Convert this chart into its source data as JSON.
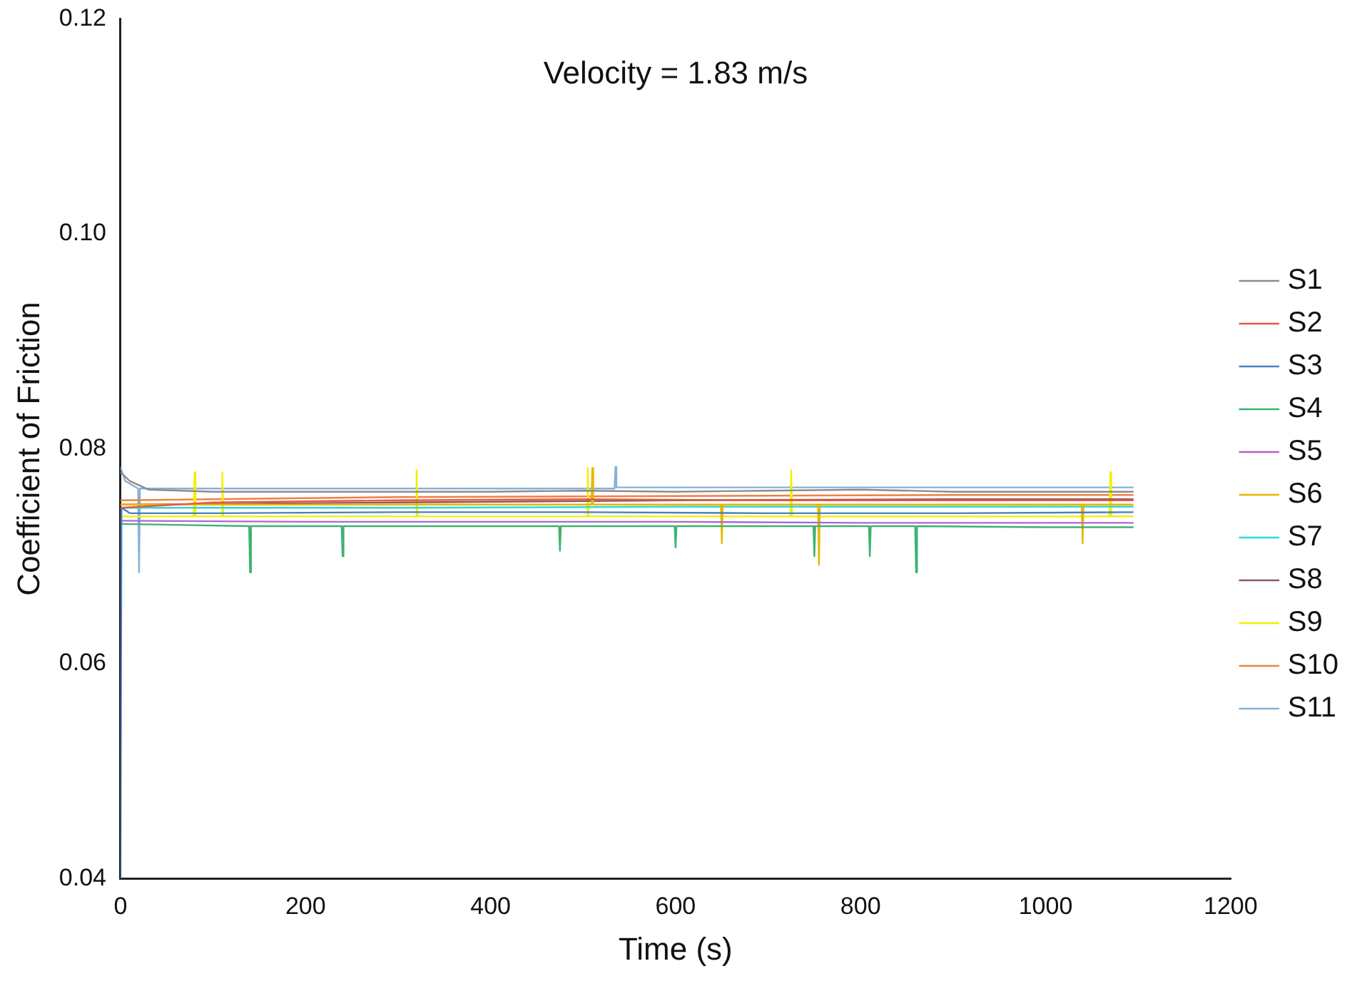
{
  "chart_data": {
    "type": "line",
    "xlabel": "Time (s)",
    "ylabel": "Coefficient of Friction",
    "annotations": [
      "Velocity = 1.83 m/s"
    ],
    "xlim": [
      0,
      1200
    ],
    "xticks": [
      0,
      200,
      400,
      600,
      800,
      1000,
      1200
    ],
    "ylim": [
      0.04,
      0.12
    ],
    "yticks": [
      0.04,
      0.06,
      0.08,
      {
        "value": 0.1,
        "label": "0.10"
      },
      0.12
    ],
    "legend": "right",
    "marker": "none",
    "line_style": "solid",
    "grid": false,
    "series": [
      {
        "name": "S1",
        "color": "#8c8c8c",
        "x": [
          0,
          10,
          30,
          100,
          200,
          300,
          400,
          500,
          600,
          700,
          800,
          900,
          1000,
          1095
        ],
        "values": [
          0.0778,
          0.077,
          0.0762,
          0.076,
          0.076,
          0.076,
          0.076,
          0.0761,
          0.076,
          0.0761,
          0.0762,
          0.076,
          0.076,
          0.076
        ]
      },
      {
        "name": "S2",
        "color": "#e8564f",
        "x": [
          0,
          100,
          300,
          500,
          700,
          900,
          1095
        ],
        "values": [
          0.0745,
          0.075,
          0.0752,
          0.0753,
          0.0752,
          0.0752,
          0.0752
        ]
      },
      {
        "name": "S3",
        "color": "#4a7fc1",
        "x": [
          0,
          1,
          10,
          100,
          300,
          500,
          700,
          900,
          1095
        ],
        "values": [
          0.04,
          0.0745,
          0.074,
          0.074,
          0.0741,
          0.0741,
          0.074,
          0.074,
          0.0741
        ]
      },
      {
        "name": "S4",
        "color": "#3cb371",
        "x": [
          0,
          139,
          140,
          141,
          239,
          240,
          241,
          474,
          475,
          476,
          599,
          600,
          601,
          749,
          750,
          751,
          809,
          810,
          811,
          859,
          860,
          861,
          1000,
          1095
        ],
        "values": [
          0.073,
          0.0728,
          0.0685,
          0.0728,
          0.0728,
          0.07,
          0.0728,
          0.0728,
          0.0705,
          0.0728,
          0.0728,
          0.0708,
          0.0728,
          0.0728,
          0.07,
          0.0728,
          0.0728,
          0.07,
          0.0728,
          0.0728,
          0.0685,
          0.0728,
          0.0727,
          0.0727
        ]
      },
      {
        "name": "S5",
        "color": "#b366cc",
        "x": [
          0,
          200,
          400,
          600,
          800,
          1000,
          1095
        ],
        "values": [
          0.0733,
          0.0732,
          0.0732,
          0.0732,
          0.0731,
          0.0731,
          0.0731
        ]
      },
      {
        "name": "S6",
        "color": "#e6b800",
        "x": [
          0,
          509,
          510,
          511,
          649,
          650,
          651,
          754,
          755,
          756,
          1039,
          1040,
          1041,
          1095
        ],
        "values": [
          0.0748,
          0.0748,
          0.0782,
          0.0748,
          0.0748,
          0.0712,
          0.0748,
          0.0748,
          0.0692,
          0.0748,
          0.0748,
          0.0712,
          0.0748,
          0.0748
        ]
      },
      {
        "name": "S7",
        "color": "#33d6d6",
        "x": [
          0,
          300,
          600,
          900,
          1095
        ],
        "values": [
          0.0745,
          0.0745,
          0.0746,
          0.0746,
          0.0746
        ]
      },
      {
        "name": "S8",
        "color": "#8b5a5a",
        "x": [
          0,
          300,
          600,
          900,
          1095
        ],
        "values": [
          0.0748,
          0.075,
          0.0752,
          0.0753,
          0.0753
        ]
      },
      {
        "name": "S9",
        "color": "#f0f000",
        "x": [
          0,
          79,
          80,
          81,
          109,
          110,
          111,
          319,
          320,
          321,
          504,
          505,
          506,
          724,
          725,
          726,
          1069,
          1070,
          1071,
          1095
        ],
        "values": [
          0.0737,
          0.0737,
          0.0778,
          0.0737,
          0.0737,
          0.0778,
          0.0737,
          0.0737,
          0.078,
          0.0737,
          0.0737,
          0.0782,
          0.0737,
          0.0737,
          0.078,
          0.0737,
          0.0737,
          0.0778,
          0.0737,
          0.0737
        ]
      },
      {
        "name": "S10",
        "color": "#f08040",
        "x": [
          0,
          300,
          600,
          900,
          1095
        ],
        "values": [
          0.0752,
          0.0755,
          0.0756,
          0.0757,
          0.0757
        ]
      },
      {
        "name": "S11",
        "color": "#88b0d8",
        "x": [
          0,
          5,
          19,
          20,
          21,
          100,
          300,
          534,
          535,
          536,
          700,
          900,
          1095
        ],
        "values": [
          0.0783,
          0.077,
          0.0763,
          0.0685,
          0.0763,
          0.0763,
          0.0763,
          0.0763,
          0.0783,
          0.0764,
          0.0764,
          0.0764,
          0.0764
        ]
      }
    ]
  }
}
